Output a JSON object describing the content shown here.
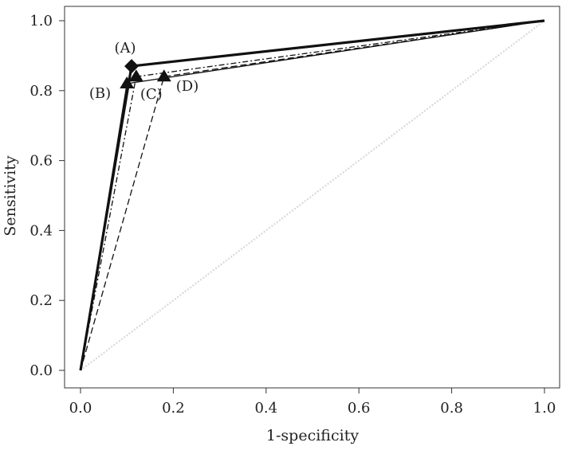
{
  "chart_data": {
    "type": "line",
    "xlabel": "1-specificity",
    "ylabel": "Sensitivity",
    "xlim": [
      0.0,
      1.0
    ],
    "ylim": [
      0.0,
      1.0
    ],
    "x_ticks": [
      "0.0",
      "0.2",
      "0.4",
      "0.6",
      "0.8",
      "1.0"
    ],
    "y_ticks": [
      "0.0",
      "0.2",
      "0.4",
      "0.6",
      "0.8",
      "1.0"
    ],
    "grid": false,
    "legend": "none",
    "series": [
      {
        "name": "(A)",
        "style": "solid-thick",
        "marker": "diamond",
        "x": [
          0.0,
          0.11,
          1.0
        ],
        "y": [
          0.0,
          0.87,
          1.0
        ]
      },
      {
        "name": "(B)",
        "style": "solid",
        "marker": "triangle",
        "x": [
          0.0,
          0.1,
          1.0
        ],
        "y": [
          0.0,
          0.82,
          1.0
        ]
      },
      {
        "name": "(C)",
        "style": "dashed-dotted",
        "marker": "triangle",
        "x": [
          0.0,
          0.12,
          1.0
        ],
        "y": [
          0.0,
          0.84,
          1.0
        ]
      },
      {
        "name": "(D)",
        "style": "dashed",
        "marker": "triangle",
        "x": [
          0.0,
          0.18,
          1.0
        ],
        "y": [
          0.0,
          0.84,
          1.0
        ]
      }
    ],
    "reference_line": {
      "x": [
        0.0,
        1.0
      ],
      "y": [
        0.0,
        1.0
      ],
      "color": "#d9d9d9"
    },
    "colors": {
      "lines": "#111111",
      "reference": "#d9d9d9",
      "frame": "#333333"
    }
  }
}
